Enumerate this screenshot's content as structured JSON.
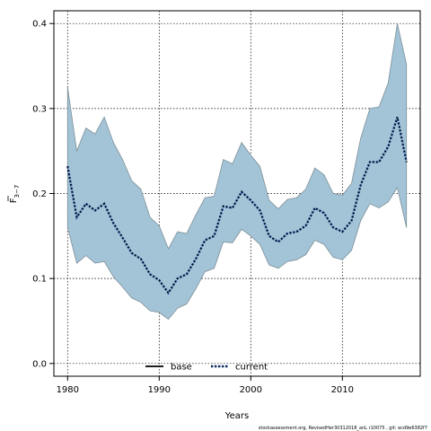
{
  "chart_data": {
    "type": "area",
    "xlabel": "Years",
    "ylabel_main": "F",
    "ylabel_sub": "3−7",
    "xlim": [
      1978.5,
      2018.5
    ],
    "ylim": [
      -0.015,
      0.415
    ],
    "xticks": [
      1980,
      1990,
      2000,
      2010
    ],
    "yticks": [
      0.0,
      0.1,
      0.2,
      0.3,
      0.4
    ],
    "ytick_labels": [
      "0.0",
      "0.1",
      "0.2",
      "0.3",
      "0.4"
    ],
    "grid": true,
    "legend_position": "bottom-center",
    "legend": [
      {
        "name": "base",
        "style": "solid",
        "color": "#000000"
      },
      {
        "name": "current",
        "style": "dotted",
        "color": "#000000",
        "halo": "#1f4e9e"
      }
    ],
    "band": {
      "color": "#a3c4d6",
      "edge_color": "#7d8f99",
      "x": [
        1980,
        1981,
        1982,
        1983,
        1984,
        1985,
        1986,
        1987,
        1988,
        1989,
        1990,
        1991,
        1992,
        1993,
        1994,
        1995,
        1996,
        1997,
        1998,
        1999,
        2000,
        2001,
        2002,
        2003,
        2004,
        2005,
        2006,
        2007,
        2008,
        2009,
        2010,
        2011,
        2012,
        2013,
        2014,
        2015,
        2016,
        2017
      ],
      "upper": [
        0.325,
        0.25,
        0.277,
        0.27,
        0.29,
        0.26,
        0.24,
        0.215,
        0.205,
        0.172,
        0.162,
        0.135,
        0.155,
        0.153,
        0.175,
        0.195,
        0.197,
        0.24,
        0.235,
        0.26,
        0.245,
        0.232,
        0.192,
        0.182,
        0.193,
        0.195,
        0.205,
        0.23,
        0.222,
        0.2,
        0.198,
        0.212,
        0.265,
        0.3,
        0.302,
        0.33,
        0.4,
        0.352
      ],
      "lower": [
        0.16,
        0.118,
        0.127,
        0.118,
        0.12,
        0.102,
        0.09,
        0.077,
        0.072,
        0.062,
        0.06,
        0.052,
        0.065,
        0.07,
        0.088,
        0.108,
        0.112,
        0.143,
        0.142,
        0.158,
        0.15,
        0.14,
        0.116,
        0.112,
        0.12,
        0.122,
        0.128,
        0.145,
        0.14,
        0.125,
        0.122,
        0.133,
        0.168,
        0.188,
        0.183,
        0.19,
        0.207,
        0.16
      ]
    },
    "series": [
      {
        "name": "current",
        "x": [
          1980,
          1981,
          1982,
          1983,
          1984,
          1985,
          1986,
          1987,
          1988,
          1989,
          1990,
          1991,
          1992,
          1993,
          1994,
          1995,
          1996,
          1997,
          1998,
          1999,
          2000,
          2001,
          2002,
          2003,
          2004,
          2005,
          2006,
          2007,
          2008,
          2009,
          2010,
          2011,
          2012,
          2013,
          2014,
          2015,
          2016,
          2017
        ],
        "y": [
          0.232,
          0.172,
          0.188,
          0.18,
          0.188,
          0.165,
          0.148,
          0.13,
          0.123,
          0.105,
          0.098,
          0.083,
          0.1,
          0.105,
          0.123,
          0.145,
          0.15,
          0.185,
          0.183,
          0.202,
          0.192,
          0.18,
          0.15,
          0.143,
          0.153,
          0.155,
          0.162,
          0.183,
          0.177,
          0.16,
          0.155,
          0.168,
          0.21,
          0.237,
          0.237,
          0.255,
          0.29,
          0.237
        ]
      }
    ]
  },
  "footnote": "stockassessment.org, RevisedHer30312018_anL r10075 , git: ecd9e6382f7"
}
